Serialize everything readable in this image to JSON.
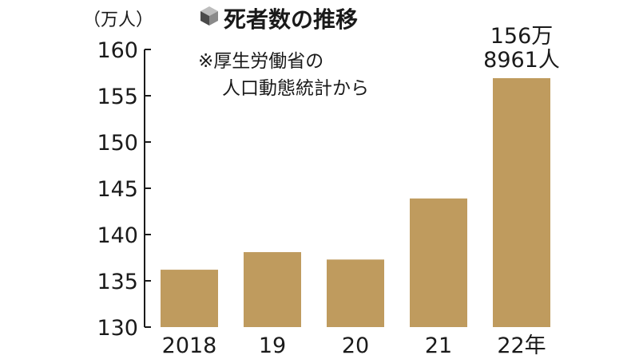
{
  "chart_data": {
    "type": "bar",
    "title": "死者数の推移",
    "note": [
      "※厚生労働省の",
      "人口動態統計から"
    ],
    "ylabel": "（万人）",
    "categories": [
      "2018",
      "19",
      "20",
      "21",
      "22年"
    ],
    "values": [
      136.2,
      138.1,
      137.3,
      143.9,
      156.9
    ],
    "ylim": [
      130,
      160
    ],
    "yticks": [
      160,
      155,
      150,
      145,
      140,
      135,
      130
    ],
    "data_labels": [
      {
        "index": 4,
        "lines": [
          "156万",
          "8961人"
        ]
      }
    ],
    "grid": false,
    "legend": "none",
    "bar_color": "#bf9b5e",
    "text_color": "#1a1a1a",
    "icon": "cube-icon"
  }
}
